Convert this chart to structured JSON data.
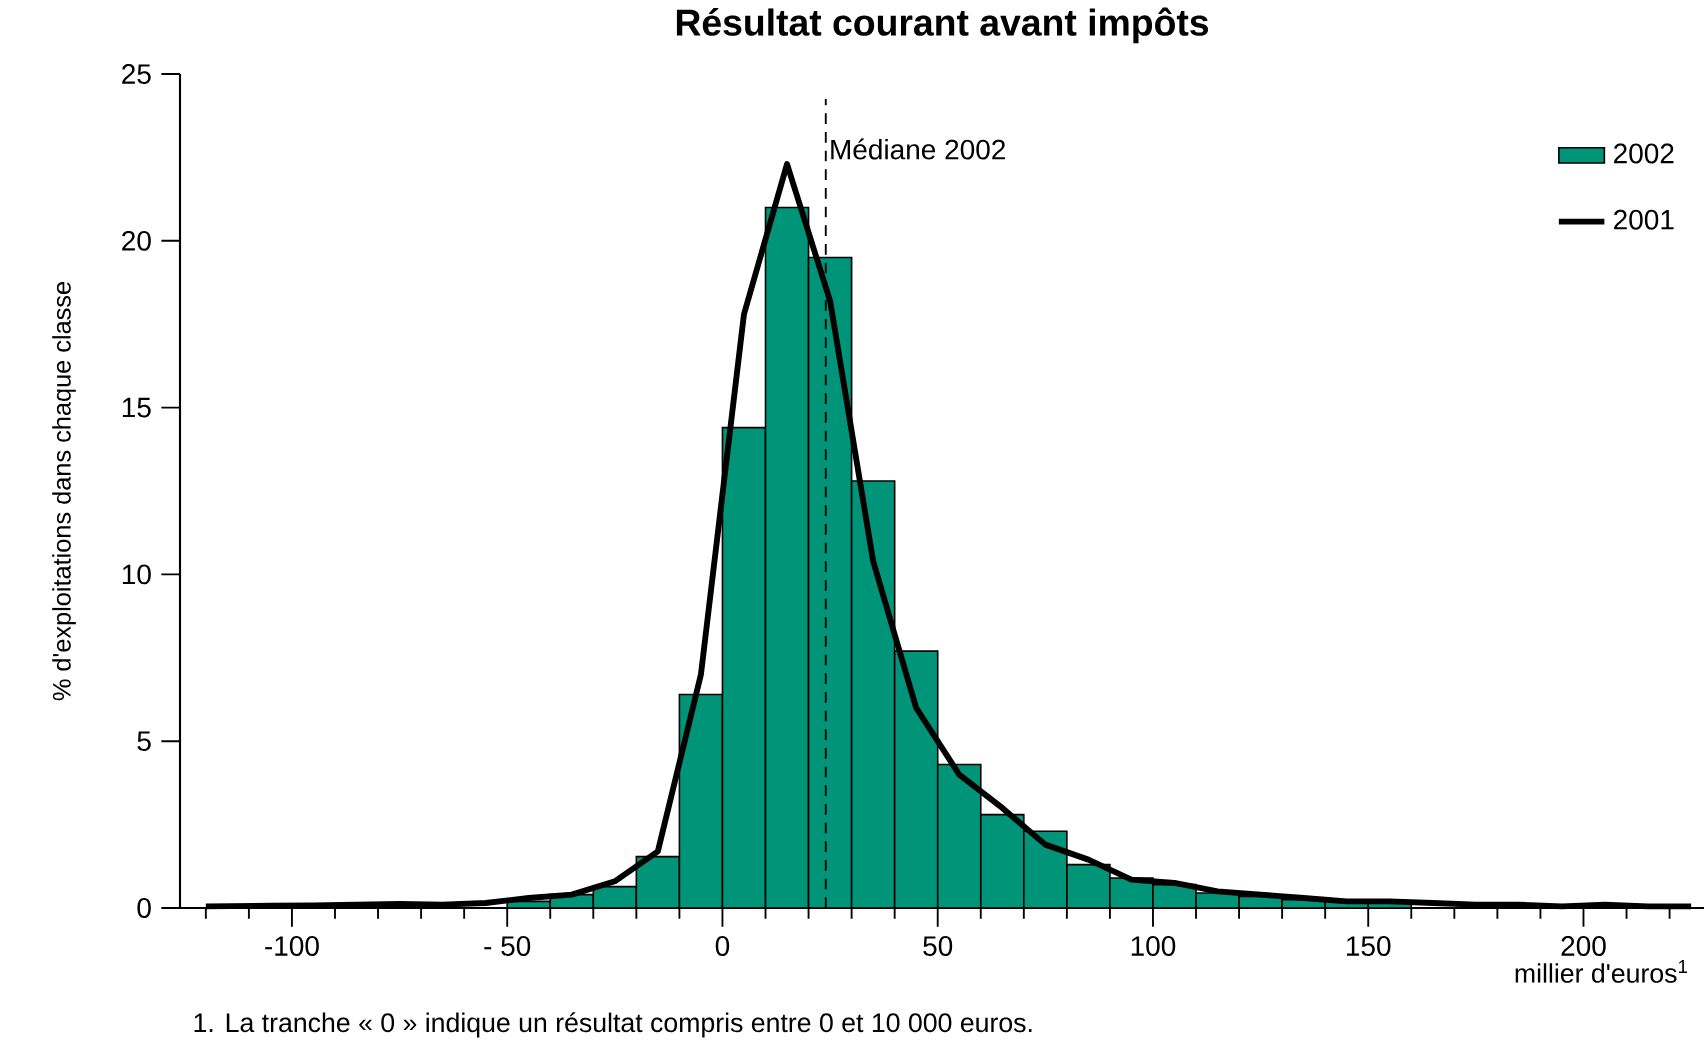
{
  "chart_data": {
    "type": "histogram",
    "title": "Résultat courant avant impôts",
    "xlabel": "millier d'euros$^{1}$",
    "ylabel": "% d'exploitations dans chaque classe",
    "series": [
      {
        "name": "2002",
        "type": "histogram",
        "color": "#009479",
        "bins": [
          -50,
          -40,
          -30,
          -20,
          -10,
          0,
          10,
          20,
          30,
          40,
          50,
          60,
          70,
          80,
          90,
          100,
          110,
          120,
          130,
          140,
          150,
          160
        ],
        "values": [
          0.2,
          0.4,
          0.64,
          1.54,
          6.4,
          14.4,
          21.0,
          19.5,
          12.8,
          7.7,
          4.3,
          2.8,
          2.3,
          1.3,
          0.9,
          0.7,
          0.45,
          0.35,
          0.25,
          0.2,
          0.15
        ]
      },
      {
        "name": "2001",
        "type": "line",
        "color": "#000000",
        "line_style": "solid",
        "x": [
          -120,
          -105,
          -95,
          -85,
          -75,
          -65,
          -55,
          -45,
          -35,
          -25,
          -15,
          -5,
          5,
          15,
          25,
          35,
          45,
          55,
          65,
          75,
          85,
          95,
          105,
          115,
          125,
          135,
          145,
          155,
          165,
          175,
          185,
          195,
          205,
          215,
          225
        ],
        "values": [
          0.05,
          0.07,
          0.08,
          0.1,
          0.12,
          0.1,
          0.15,
          0.3,
          0.4,
          0.8,
          1.7,
          7.0,
          17.8,
          22.3,
          18.2,
          10.4,
          6.0,
          4.0,
          3.0,
          1.9,
          1.45,
          0.85,
          0.75,
          0.5,
          0.4,
          0.3,
          0.2,
          0.2,
          0.15,
          0.1,
          0.1,
          0.05,
          0.1,
          0.05,
          0.05
        ]
      }
    ],
    "xlim": [
      -126,
      228
    ],
    "ylim": [
      0,
      25
    ],
    "xticks": [
      {
        "value": -120,
        "label": null
      },
      {
        "value": -110,
        "label": null
      },
      {
        "value": -100,
        "label": "-100"
      },
      {
        "value": -90,
        "label": null
      },
      {
        "value": -80,
        "label": null
      },
      {
        "value": -70,
        "label": null
      },
      {
        "value": -60,
        "label": null
      },
      {
        "value": -50,
        "label": "- 50"
      },
      {
        "value": -40,
        "label": null
      },
      {
        "value": -30,
        "label": null
      },
      {
        "value": -20,
        "label": null
      },
      {
        "value": -10,
        "label": null
      },
      0,
      {
        "value": 10,
        "label": null
      },
      {
        "value": 20,
        "label": null
      },
      {
        "value": 30,
        "label": null
      },
      {
        "value": 40,
        "label": null
      },
      50,
      {
        "value": 60,
        "label": null
      },
      {
        "value": 70,
        "label": null
      },
      {
        "value": 80,
        "label": null
      },
      {
        "value": 90,
        "label": null
      },
      100,
      {
        "value": 110,
        "label": null
      },
      {
        "value": 120,
        "label": null
      },
      {
        "value": 130,
        "label": null
      },
      {
        "value": 140,
        "label": null
      },
      150,
      {
        "value": 160,
        "label": null
      },
      {
        "value": 170,
        "label": null
      },
      {
        "value": 180,
        "label": null
      },
      {
        "value": 190,
        "label": null
      },
      200,
      {
        "value": 210,
        "label": null
      },
      {
        "value": 220,
        "label": null
      }
    ],
    "yticks": [
      0,
      5,
      10,
      15,
      20,
      25
    ],
    "grid": false,
    "legend": "top right",
    "ref_lines": [
      {
        "axis": "x",
        "value": 24,
        "label": "Médiane 2002",
        "line_style": "dashed"
      }
    ],
    "annotations": [
      "1. La tranche « 0 » indique un résultat compris entre 0 et 10 000 euros."
    ]
  }
}
